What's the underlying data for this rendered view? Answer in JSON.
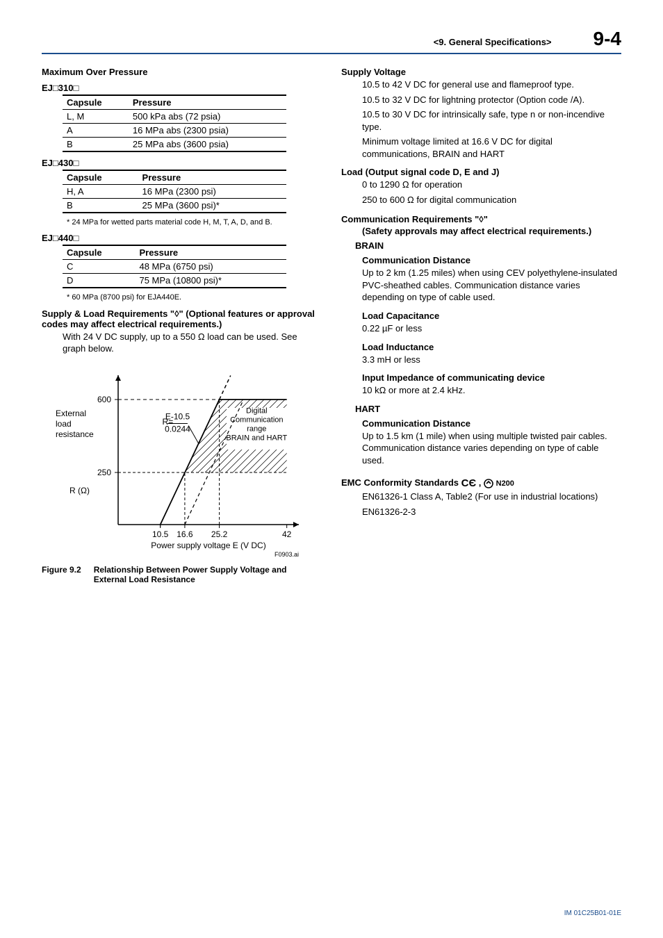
{
  "header": {
    "section_title": "<9.  General Specifications>",
    "page_number": "9-4"
  },
  "left": {
    "max_over_pressure_heading": "Maximum Over Pressure",
    "tables": [
      {
        "model": "EJ□310□",
        "columns": [
          "Capsule",
          "Pressure"
        ],
        "rows": [
          [
            "L, M",
            "500 kPa abs (72 psia)"
          ],
          [
            "A",
            "16 MPa abs (2300 psia)"
          ],
          [
            "B",
            "25 MPa abs (3600 psia)"
          ]
        ],
        "footnote": null
      },
      {
        "model": "EJ□430□",
        "columns": [
          "Capsule",
          "Pressure"
        ],
        "rows": [
          [
            "H, A",
            "16 MPa (2300 psi)"
          ],
          [
            "B",
            "25 MPa (3600 psi)*"
          ]
        ],
        "footnote": "*  24 MPa for wetted parts material code H, M, T, A, D, and B."
      },
      {
        "model": "EJ□440□",
        "columns": [
          "Capsule",
          "Pressure"
        ],
        "rows": [
          [
            "C",
            "48 MPa (6750 psi)"
          ],
          [
            "D",
            "75 MPa (10800 psi)*"
          ]
        ],
        "footnote": "*  60 MPa (8700 psi) for EJA440E."
      }
    ],
    "supply_load_heading": "Supply & Load Requirements \"◊\" (Optional features or approval codes may affect electrical requirements.)",
    "supply_load_text": "With 24 V DC supply, up to a 550 Ω load can be used.  See graph below.",
    "graph": {
      "y_label_lines": [
        "External",
        "load",
        "resistance"
      ],
      "y_unit": "R (Ω)",
      "y_ticks": [
        "600",
        "250"
      ],
      "x_label": "Power supply voltage  E (V DC)",
      "x_ticks": [
        "10.5",
        "16.6",
        "25.2",
        "42"
      ],
      "formula_prefix": "R=",
      "formula_num": "E-10.5",
      "formula_den": "0.0244",
      "region_lines": [
        "Digital",
        "Communication",
        "range",
        "BRAIN and HART"
      ],
      "source_ref": "F0903.ai",
      "colors": {
        "axis": "#000000",
        "solid_line": "#000000",
        "dash_line": "#000000",
        "hatch": "#000000"
      },
      "y_axis_range": [
        0,
        700
      ],
      "x_axis_range": [
        0,
        45
      ]
    },
    "figure_caption_label": "Figure 9.2",
    "figure_caption_text": "Relationship Between Power Supply Voltage and External Load Resistance"
  },
  "right": {
    "supply_voltage_heading": "Supply Voltage",
    "supply_voltage_items": [
      "10.5 to 42 V DC for general use and flameproof type.",
      "10.5 to 32 V DC for lightning protector (Option code /A).",
      "10.5 to 30 V DC for intrinsically safe, type n or non-incendive type.",
      "Minimum voltage limited at 16.6 V DC for digital communications, BRAIN and HART"
    ],
    "load_heading": "Load (Output signal code D, E and J)",
    "load_items": [
      "0 to 1290 Ω for operation",
      "250 to 600 Ω for digital communication"
    ],
    "comm_req_heading": "Communication Requirements \"◊\"",
    "comm_req_sub": "(Safety approvals may affect electrical requirements.)",
    "protocols": [
      {
        "name": "BRAIN",
        "blocks": [
          {
            "title": "Communication Distance",
            "text": "Up to 2 km (1.25 miles) when using CEV polyethylene-insulated PVC-sheathed cables. Communication distance varies depending on type of cable used."
          },
          {
            "title": "Load Capacitance",
            "text": "0.22 µF or less"
          },
          {
            "title": "Load Inductance",
            "text": "3.3 mH or less"
          },
          {
            "title": "Input Impedance of communicating device",
            "text": "10 kΩ or more at 2.4 kHz."
          }
        ]
      },
      {
        "name": "HART",
        "blocks": [
          {
            "title": "Communication Distance",
            "text": "Up to 1.5 km (1 mile) when using multiple twisted pair cables. Communication distance varies depending on type of cable used."
          }
        ]
      }
    ],
    "emc_heading_prefix": "EMC Conformity Standards ",
    "emc_n200": " N200",
    "emc_items": [
      "EN61326-1 Class A, Table2 (For use in industrial locations)",
      "EN61326-2-3"
    ]
  },
  "footer": {
    "doc_id": "IM 01C25B01-01E"
  }
}
